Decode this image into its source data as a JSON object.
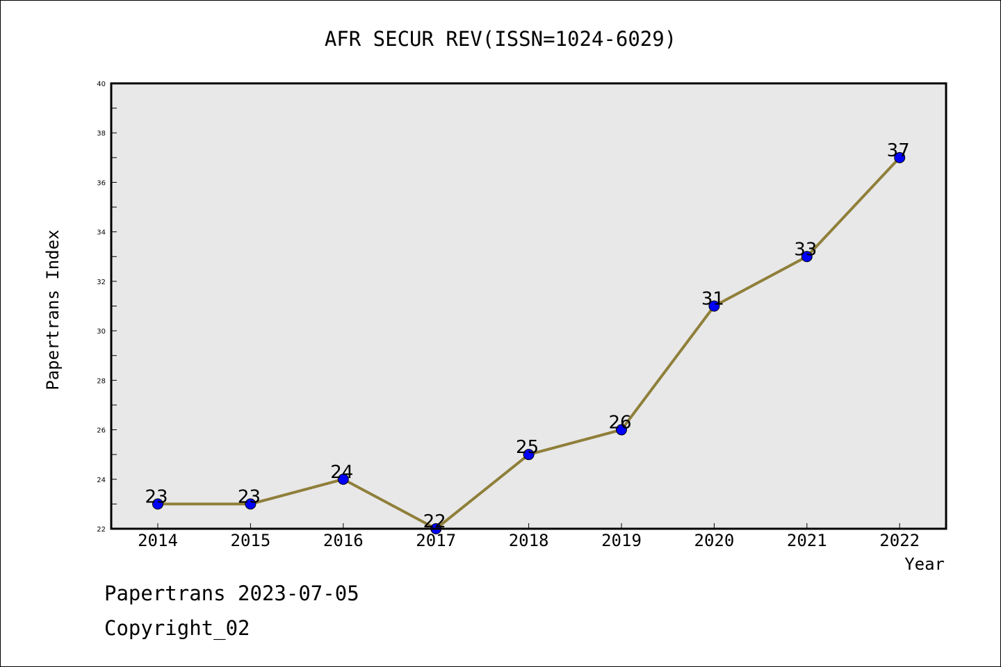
{
  "chart_data": {
    "type": "line",
    "title": "AFR SECUR REV(ISSN=1024-6029)",
    "xlabel": "Year",
    "ylabel": "Papertrans Index",
    "x": [
      "2014",
      "2015",
      "2016",
      "2017",
      "2018",
      "2019",
      "2020",
      "2021",
      "2022"
    ],
    "series": [
      {
        "values": [
          23,
          23,
          24,
          22,
          25,
          26,
          31,
          33,
          37
        ]
      }
    ],
    "data_labels": [
      "23",
      "23",
      "24",
      "22",
      "25",
      "26",
      "31",
      "33",
      "37"
    ],
    "ylim": [
      22,
      40
    ],
    "y_ticks": [
      "22",
      "24",
      "26",
      "28",
      "30",
      "32",
      "34",
      "36",
      "38",
      "40"
    ],
    "grid": false,
    "legend": "none",
    "colors": {
      "line": "#8f7f3a",
      "marker": "#0000ff",
      "plot_background": "#e8e8e8",
      "frame": "#000000"
    }
  },
  "footer": {
    "line1": "Papertrans 2023-07-05",
    "line2": "Copyright_02"
  }
}
